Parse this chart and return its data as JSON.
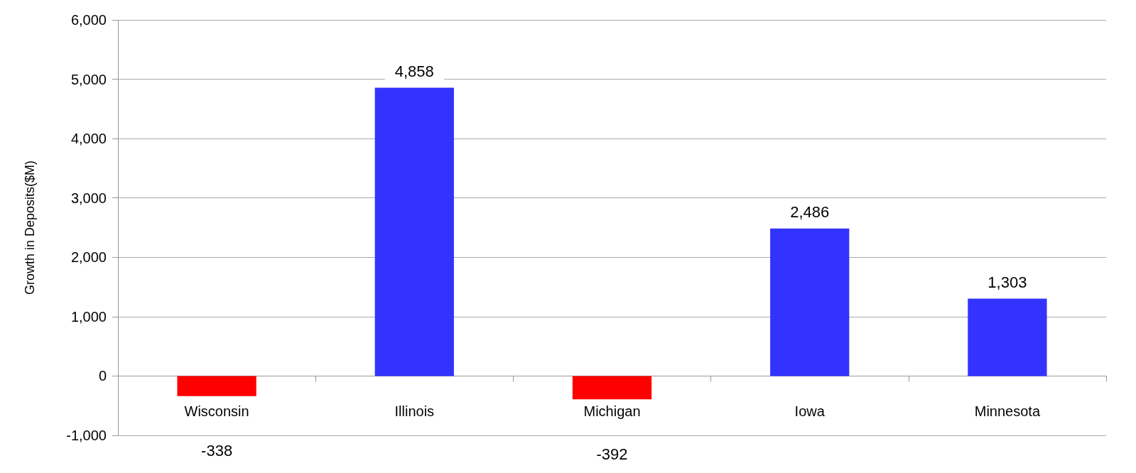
{
  "chart_data": {
    "type": "bar",
    "ylabel": "Growth in Deposits($M)",
    "categories": [
      "Wisconsin",
      "Illinois",
      "Michigan",
      "Iowa",
      "Minnesota"
    ],
    "values": [
      -338,
      4858,
      -392,
      2486,
      1303
    ],
    "colors": [
      "#ff0000",
      "#3333ff",
      "#ff0000",
      "#3333ff",
      "#3333ff"
    ],
    "value_labels": [
      "-338",
      "4,858",
      "-392",
      "2,486",
      "1,303"
    ],
    "ylim": [
      -1000,
      6000
    ],
    "yticks": [
      {
        "value": -1000,
        "label": "-1,000"
      },
      0,
      {
        "value": 1000,
        "label": "1,000"
      },
      {
        "value": 2000,
        "label": "2,000"
      },
      {
        "value": 3000,
        "label": "3,000"
      },
      {
        "value": 4000,
        "label": "4,000"
      },
      {
        "value": 5000,
        "label": "5,000"
      },
      {
        "value": 6000,
        "label": "6,000"
      }
    ],
    "grid": "y"
  }
}
